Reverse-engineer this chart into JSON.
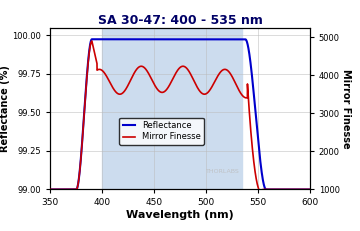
{
  "title": "SA 30-47: 400 - 535 nm",
  "title_color": "#000066",
  "xlabel": "Wavelength (nm)",
  "ylabel_left": "Reflectance (%)",
  "ylabel_right": "Mirror Finesse",
  "xlim": [
    350,
    600
  ],
  "ylim_left": [
    99.0,
    100.05
  ],
  "ylim_right": [
    1000,
    5250
  ],
  "yticks_left": [
    99.0,
    99.25,
    99.5,
    99.75,
    100.0
  ],
  "ytick_labels_left": [
    "99.00",
    "99.25",
    "99.50",
    "99.75",
    "100.00"
  ],
  "yticks_right": [
    1000,
    2000,
    3000,
    4000,
    5000
  ],
  "xticks": [
    350,
    400,
    450,
    500,
    550,
    600
  ],
  "shaded_region": [
    400,
    535
  ],
  "shade_color": "#ccdcee",
  "reflectance_color": "#0000cc",
  "finesse_color": "#cc0000",
  "bg_color": "#ffffff",
  "grid_color": "#bbbbbb",
  "watermark": "THORLABS",
  "watermark_color": "#bbbbbb",
  "figsize": [
    3.6,
    2.31
  ],
  "dpi": 100
}
